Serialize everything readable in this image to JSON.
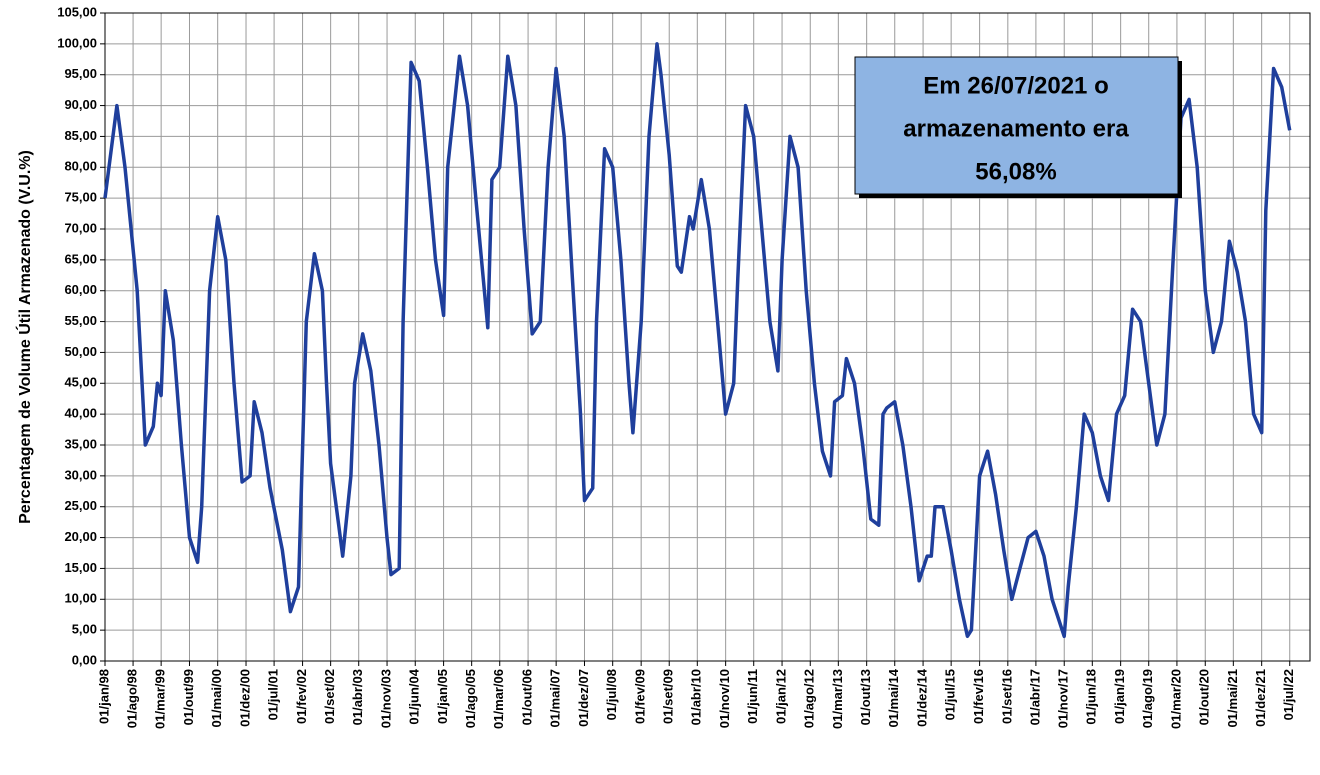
{
  "chart_data": {
    "type": "line",
    "y_label": "Percentagem de Volume Útil Armazenado (V.U.%)",
    "annotation": [
      "Em 26/07/2021 o",
      "armazenamento era",
      "56,08%"
    ],
    "grid": true,
    "xlim": [
      "1998-01-01",
      "2022-12-01"
    ],
    "ylim": [
      0,
      105
    ],
    "yticks": [
      {
        "value": 0,
        "label": "0,00"
      },
      {
        "value": 5,
        "label": "5,00"
      },
      {
        "value": 10,
        "label": "10,00"
      },
      {
        "value": 15,
        "label": "15,00"
      },
      {
        "value": 20,
        "label": "20,00"
      },
      {
        "value": 25,
        "label": "25,00"
      },
      {
        "value": 30,
        "label": "30,00"
      },
      {
        "value": 35,
        "label": "35,00"
      },
      {
        "value": 40,
        "label": "40,00"
      },
      {
        "value": 45,
        "label": "45,00"
      },
      {
        "value": 50,
        "label": "50,00"
      },
      {
        "value": 55,
        "label": "55,00"
      },
      {
        "value": 60,
        "label": "60,00"
      },
      {
        "value": 65,
        "label": "65,00"
      },
      {
        "value": 70,
        "label": "70,00"
      },
      {
        "value": 75,
        "label": "75,00"
      },
      {
        "value": 80,
        "label": "80,00"
      },
      {
        "value": 85,
        "label": "85,00"
      },
      {
        "value": 90,
        "label": "90,00"
      },
      {
        "value": 95,
        "label": "95,00"
      },
      {
        "value": 100,
        "label": "100,00"
      },
      {
        "value": 105,
        "label": "105,00"
      }
    ],
    "xticks": [
      {
        "value": "1998-01-01",
        "label": "01/jan/98"
      },
      {
        "value": "1998-08-01",
        "label": "01/ago/98"
      },
      {
        "value": "1999-03-01",
        "label": "01/mar/99"
      },
      {
        "value": "1999-10-01",
        "label": "01/out/99"
      },
      {
        "value": "2000-05-01",
        "label": "01/mai/00"
      },
      {
        "value": "2000-12-01",
        "label": "01/dez/00"
      },
      {
        "value": "2001-07-01",
        "label": "01/jul/01"
      },
      {
        "value": "2002-02-01",
        "label": "01/fev/02"
      },
      {
        "value": "2002-09-01",
        "label": "01/set/02"
      },
      {
        "value": "2003-04-01",
        "label": "01/abr/03"
      },
      {
        "value": "2003-11-01",
        "label": "01/nov/03"
      },
      {
        "value": "2004-06-01",
        "label": "01/jun/04"
      },
      {
        "value": "2005-01-01",
        "label": "01/jan/05"
      },
      {
        "value": "2005-08-01",
        "label": "01/ago/05"
      },
      {
        "value": "2006-03-01",
        "label": "01/mar/06"
      },
      {
        "value": "2006-10-01",
        "label": "01/out/06"
      },
      {
        "value": "2007-05-01",
        "label": "01/mai/07"
      },
      {
        "value": "2007-12-01",
        "label": "01/dez/07"
      },
      {
        "value": "2008-07-01",
        "label": "01/jul/08"
      },
      {
        "value": "2009-02-01",
        "label": "01/fev/09"
      },
      {
        "value": "2009-09-01",
        "label": "01/set/09"
      },
      {
        "value": "2010-04-01",
        "label": "01/abr/10"
      },
      {
        "value": "2010-11-01",
        "label": "01/nov/10"
      },
      {
        "value": "2011-06-01",
        "label": "01/jun/11"
      },
      {
        "value": "2012-01-01",
        "label": "01/jan/12"
      },
      {
        "value": "2012-08-01",
        "label": "01/ago/12"
      },
      {
        "value": "2013-03-01",
        "label": "01/mar/13"
      },
      {
        "value": "2013-10-01",
        "label": "01/out/13"
      },
      {
        "value": "2014-05-01",
        "label": "01/mai/14"
      },
      {
        "value": "2014-12-01",
        "label": "01/dez/14"
      },
      {
        "value": "2015-07-01",
        "label": "01/jul/15"
      },
      {
        "value": "2016-02-01",
        "label": "01/fev/16"
      },
      {
        "value": "2016-09-01",
        "label": "01/set/16"
      },
      {
        "value": "2017-04-01",
        "label": "01/abr/17"
      },
      {
        "value": "2017-11-01",
        "label": "01/nov/17"
      },
      {
        "value": "2018-06-01",
        "label": "01/jun/18"
      },
      {
        "value": "2019-01-01",
        "label": "01/jan/19"
      },
      {
        "value": "2019-08-01",
        "label": "01/ago/19"
      },
      {
        "value": "2020-03-01",
        "label": "01/mar/20"
      },
      {
        "value": "2020-10-01",
        "label": "01/out/20"
      },
      {
        "value": "2021-05-01",
        "label": "01/mai/21"
      },
      {
        "value": "2021-12-01",
        "label": "01/dez/21"
      },
      {
        "value": "2022-07-01",
        "label": "01/jul/22"
      }
    ],
    "x": [
      "1998-01-01",
      "1998-04-01",
      "1998-06-01",
      "1998-09-01",
      "1998-11-01",
      "1999-01-01",
      "1999-02-01",
      "1999-03-01",
      "1999-04-01",
      "1999-06-01",
      "1999-08-01",
      "1999-10-01",
      "1999-12-01",
      "2000-01-01",
      "2000-03-01",
      "2000-05-01",
      "2000-07-01",
      "2000-09-01",
      "2000-11-01",
      "2001-01-01",
      "2001-02-01",
      "2001-04-01",
      "2001-06-01",
      "2001-09-01",
      "2001-11-01",
      "2002-01-01",
      "2002-03-01",
      "2002-05-01",
      "2002-07-01",
      "2002-08-01",
      "2002-09-01",
      "2002-11-01",
      "2002-12-01",
      "2003-02-01",
      "2003-03-01",
      "2003-05-01",
      "2003-07-01",
      "2003-09-01",
      "2003-11-01",
      "2003-12-01",
      "2004-02-01",
      "2004-03-01",
      "2004-05-01",
      "2004-07-01",
      "2004-09-01",
      "2004-11-01",
      "2005-01-01",
      "2005-02-01",
      "2005-05-01",
      "2005-07-01",
      "2005-09-01",
      "2005-12-01",
      "2006-01-01",
      "2006-03-01",
      "2006-05-01",
      "2006-07-01",
      "2006-09-01",
      "2006-11-01",
      "2007-01-01",
      "2007-03-01",
      "2007-05-01",
      "2007-07-01",
      "2007-09-01",
      "2007-11-01",
      "2007-12-01",
      "2008-02-01",
      "2008-03-01",
      "2008-05-01",
      "2008-07-01",
      "2008-09-01",
      "2008-11-01",
      "2008-12-01",
      "2009-02-01",
      "2009-04-01",
      "2009-06-01",
      "2009-07-01",
      "2009-09-01",
      "2009-11-01",
      "2009-12-01",
      "2010-02-01",
      "2010-03-01",
      "2010-05-01",
      "2010-07-01",
      "2010-09-01",
      "2010-11-01",
      "2011-01-01",
      "2011-02-01",
      "2011-04-01",
      "2011-06-01",
      "2011-08-01",
      "2011-10-01",
      "2011-12-01",
      "2012-01-01",
      "2012-03-01",
      "2012-05-01",
      "2012-07-01",
      "2012-09-01",
      "2012-11-01",
      "2013-01-01",
      "2013-02-01",
      "2013-04-01",
      "2013-05-01",
      "2013-07-01",
      "2013-09-01",
      "2013-11-01",
      "2014-01-01",
      "2014-02-01",
      "2014-03-01",
      "2014-05-01",
      "2014-07-01",
      "2014-09-01",
      "2014-11-01",
      "2015-01-01",
      "2015-02-01",
      "2015-03-01",
      "2015-05-01",
      "2015-07-01",
      "2015-09-01",
      "2015-11-01",
      "2015-12-01",
      "2016-02-01",
      "2016-04-01",
      "2016-06-01",
      "2016-08-01",
      "2016-10-01",
      "2016-12-01",
      "2017-02-01",
      "2017-04-01",
      "2017-06-01",
      "2017-08-01",
      "2017-11-01",
      "2017-12-01",
      "2018-02-01",
      "2018-04-01",
      "2018-06-01",
      "2018-08-01",
      "2018-10-01",
      "2018-12-01",
      "2019-02-01",
      "2019-04-01",
      "2019-06-01",
      "2019-08-01",
      "2019-10-01",
      "2019-12-01",
      "2020-02-01",
      "2020-04-01",
      "2020-06-01",
      "2020-08-01",
      "2020-10-01",
      "2020-12-01",
      "2021-02-01",
      "2021-04-01",
      "2021-06-01",
      "2021-08-01",
      "2021-10-01",
      "2021-12-01",
      "2022-01-01",
      "2022-03-01",
      "2022-05-01",
      "2022-07-01"
    ],
    "series": [
      {
        "color": "#1f3f9c",
        "values": [
          75,
          90,
          80,
          60,
          35,
          38,
          45,
          43,
          60,
          52,
          35,
          20,
          16,
          25,
          60,
          72,
          65,
          45,
          29,
          30,
          42,
          37,
          28,
          18,
          8,
          12,
          55,
          66,
          60,
          45,
          32,
          22,
          17,
          30,
          45,
          53,
          47,
          35,
          20,
          14,
          15,
          55,
          97,
          94,
          80,
          65,
          56,
          80,
          98,
          90,
          75,
          54,
          78,
          80,
          98,
          90,
          70,
          53,
          55,
          80,
          96,
          85,
          62,
          40,
          26,
          28,
          55,
          83,
          80,
          65,
          45,
          37,
          55,
          85,
          100,
          95,
          82,
          64,
          63,
          72,
          70,
          78,
          70,
          55,
          40,
          45,
          62,
          90,
          85,
          70,
          55,
          47,
          65,
          85,
          80,
          60,
          45,
          34,
          30,
          42,
          43,
          49,
          45,
          35,
          23,
          22,
          40,
          41,
          42,
          35,
          25,
          13,
          17,
          17,
          25,
          25,
          18,
          10,
          4,
          5,
          30,
          34,
          27,
          18,
          10,
          15,
          20,
          21,
          17,
          10,
          4,
          12,
          25,
          40,
          37,
          30,
          26,
          40,
          43,
          57,
          55,
          45,
          35,
          40,
          65,
          88,
          91,
          80,
          60,
          50,
          55,
          68,
          63,
          55,
          40,
          37,
          73,
          96,
          93,
          86
        ]
      }
    ]
  }
}
